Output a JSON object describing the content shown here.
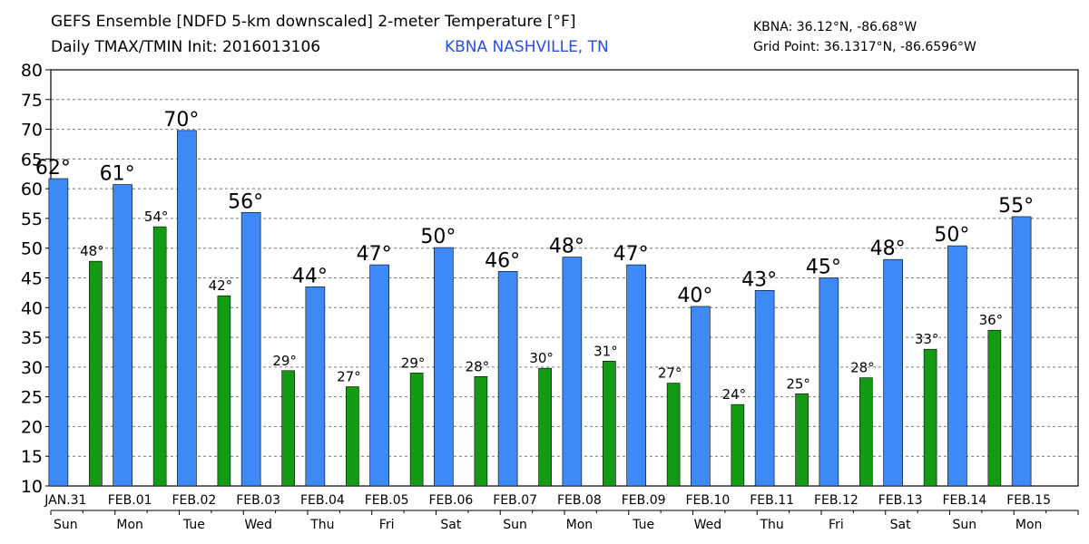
{
  "header": {
    "title_line1": "GEFS Ensemble [NDFD 5-km downscaled] 2-meter Temperature [°F]",
    "title_line2": "Daily TMAX/TMIN Init: 2016013106",
    "station": "KBNA NASHVILLE, TN",
    "station_color": "#2a4fe0",
    "coord_station": "KBNA: 36.12°N, -86.68°W",
    "coord_grid": "Grid Point: 36.1317°N, -86.6596°W"
  },
  "chart_data": {
    "type": "bar",
    "title": "GEFS Ensemble [NDFD 5-km downscaled] 2-meter Temperature [°F]",
    "subtitle": "Daily TMAX/TMIN Init: 2016013106",
    "ylim": [
      10,
      80
    ],
    "yticks": [
      10,
      15,
      20,
      25,
      30,
      35,
      40,
      45,
      50,
      55,
      60,
      65,
      70,
      75,
      80
    ],
    "grid": "horizontal dashed",
    "legend": "none",
    "days": [
      {
        "date": "JAN.31",
        "dow": "Sun",
        "tmax": 61.7,
        "tmax_label": "62°",
        "tmin": 47.8,
        "tmin_label": "48°"
      },
      {
        "date": "FEB.01",
        "dow": "Mon",
        "tmax": 60.7,
        "tmax_label": "61°",
        "tmin": 53.6,
        "tmin_label": "54°"
      },
      {
        "date": "FEB.02",
        "dow": "Tue",
        "tmax": 69.8,
        "tmax_label": "70°",
        "tmin": 42.0,
        "tmin_label": "42°"
      },
      {
        "date": "FEB.03",
        "dow": "Wed",
        "tmax": 56.0,
        "tmax_label": "56°",
        "tmin": 29.4,
        "tmin_label": "29°"
      },
      {
        "date": "FEB.04",
        "dow": "Thu",
        "tmax": 43.5,
        "tmax_label": "44°",
        "tmin": 26.7,
        "tmin_label": "27°"
      },
      {
        "date": "FEB.05",
        "dow": "Fri",
        "tmax": 47.2,
        "tmax_label": "47°",
        "tmin": 29.0,
        "tmin_label": "29°"
      },
      {
        "date": "FEB.06",
        "dow": "Sat",
        "tmax": 50.1,
        "tmax_label": "50°",
        "tmin": 28.4,
        "tmin_label": "28°"
      },
      {
        "date": "FEB.07",
        "dow": "Sun",
        "tmax": 46.1,
        "tmax_label": "46°",
        "tmin": 29.8,
        "tmin_label": "30°"
      },
      {
        "date": "FEB.08",
        "dow": "Mon",
        "tmax": 48.5,
        "tmax_label": "48°",
        "tmin": 31.0,
        "tmin_label": "31°"
      },
      {
        "date": "FEB.09",
        "dow": "Tue",
        "tmax": 47.2,
        "tmax_label": "47°",
        "tmin": 27.3,
        "tmin_label": "27°"
      },
      {
        "date": "FEB.10",
        "dow": "Wed",
        "tmax": 40.2,
        "tmax_label": "40°",
        "tmin": 23.7,
        "tmin_label": "24°"
      },
      {
        "date": "FEB.11",
        "dow": "Thu",
        "tmax": 42.9,
        "tmax_label": "43°",
        "tmin": 25.5,
        "tmin_label": "25°"
      },
      {
        "date": "FEB.12",
        "dow": "Fri",
        "tmax": 45.0,
        "tmax_label": "45°",
        "tmin": 28.2,
        "tmin_label": "28°"
      },
      {
        "date": "FEB.13",
        "dow": "Sat",
        "tmax": 48.1,
        "tmax_label": "48°",
        "tmin": 33.0,
        "tmin_label": "33°"
      },
      {
        "date": "FEB.14",
        "dow": "Sun",
        "tmax": 50.4,
        "tmax_label": "50°",
        "tmin": 36.2,
        "tmin_label": "36°"
      },
      {
        "date": "FEB.15",
        "dow": "Mon",
        "tmax": 55.3,
        "tmax_label": "55°",
        "tmin": null,
        "tmin_label": ""
      }
    ],
    "colors": {
      "tmax": "#3d8af7",
      "tmin": "#139c13"
    }
  }
}
